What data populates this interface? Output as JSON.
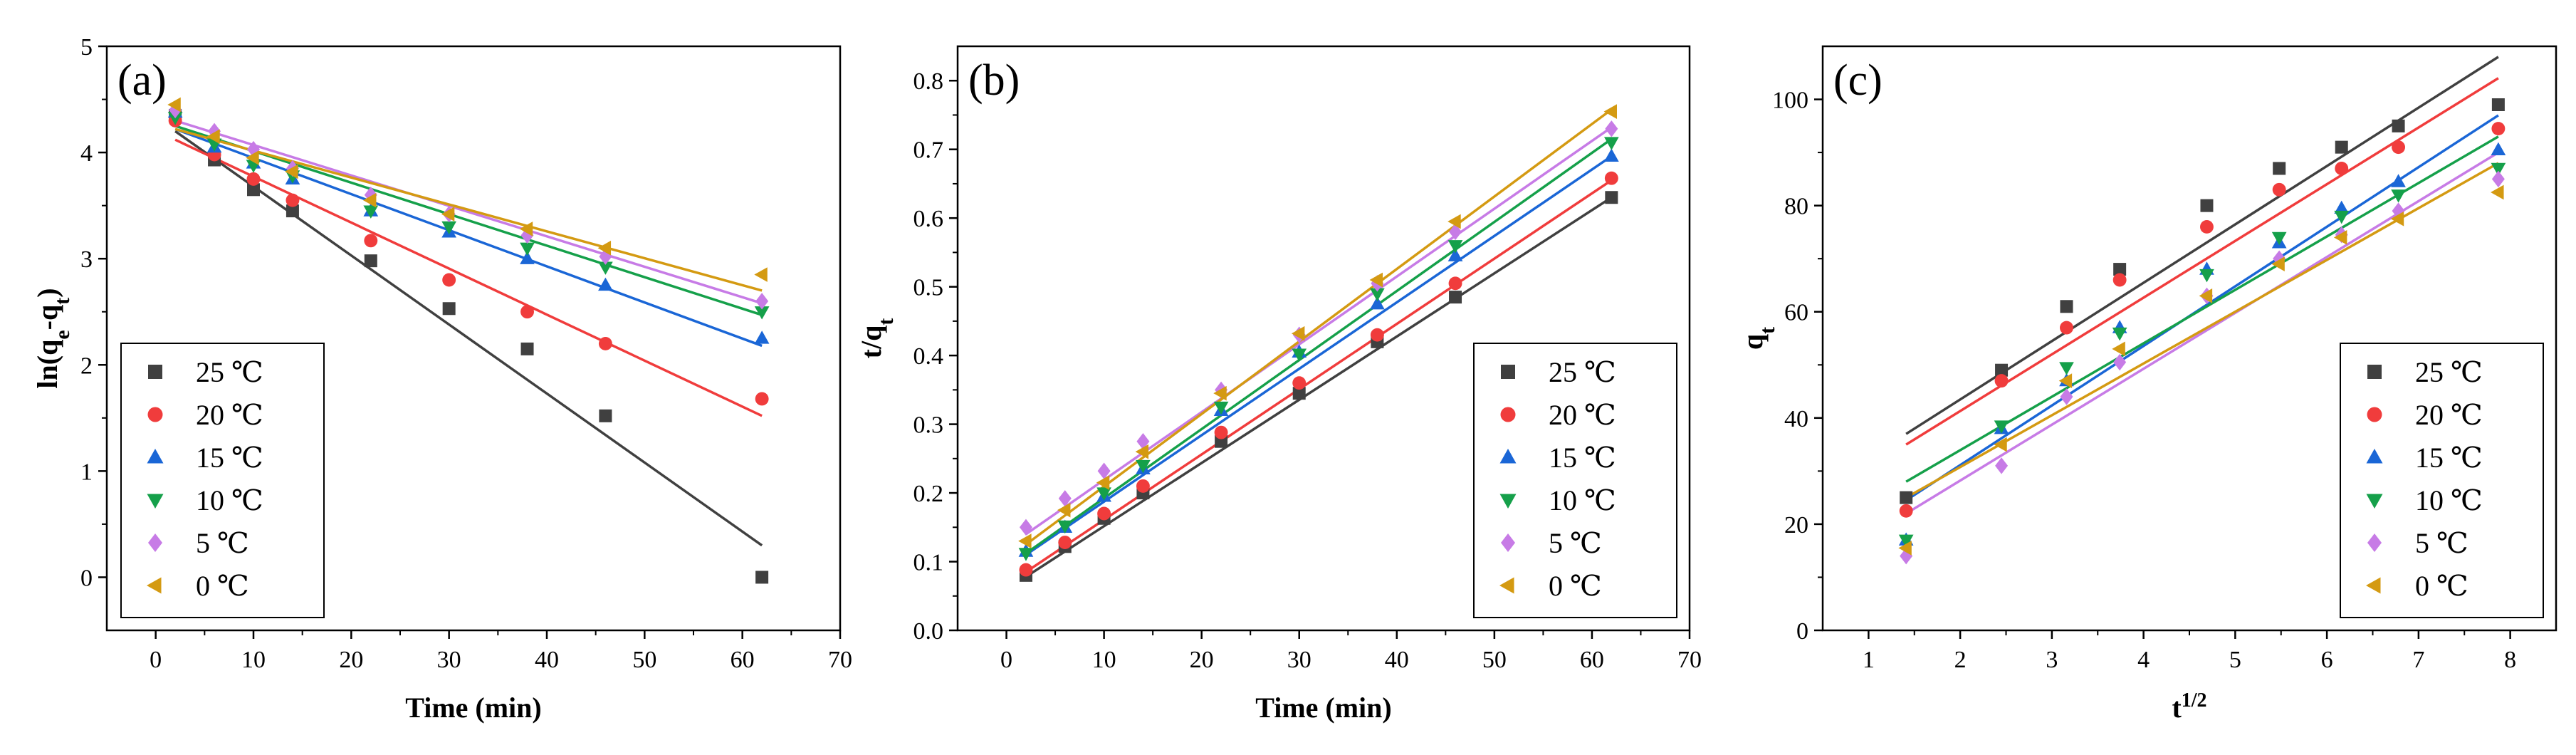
{
  "chart_data": [
    {
      "type": "scatter",
      "panel_label": "(a)",
      "xlabel": "Time (min)",
      "ylabel": "ln(qe-qt)",
      "xlim": [
        -5,
        70
      ],
      "ylim": [
        -0.5,
        5
      ],
      "xticks": [
        0,
        10,
        20,
        30,
        40,
        50,
        60,
        70
      ],
      "yticks": [
        0,
        1,
        2,
        3,
        4,
        5
      ],
      "grid": false,
      "legend_position": "bottom-left",
      "series": [
        {
          "name": "25 ℃",
          "marker": "square",
          "color": "#404040",
          "x": [
            2,
            6,
            10,
            14,
            22,
            30,
            38,
            46,
            62
          ],
          "y": [
            4.35,
            3.93,
            3.65,
            3.45,
            2.98,
            2.53,
            2.15,
            1.52,
            0.0
          ],
          "fit": {
            "x": [
              2,
              62
            ],
            "y": [
              4.2,
              0.3
            ]
          }
        },
        {
          "name": "20 ℃",
          "marker": "circle",
          "color": "#f03c3c",
          "x": [
            2,
            6,
            10,
            14,
            22,
            30,
            38,
            46,
            62
          ],
          "y": [
            4.3,
            3.98,
            3.75,
            3.55,
            3.17,
            2.8,
            2.5,
            2.2,
            1.68
          ],
          "fit": {
            "x": [
              2,
              62
            ],
            "y": [
              4.12,
              1.52
            ]
          }
        },
        {
          "name": "15 ℃",
          "marker": "triangle-up",
          "color": "#1a66d6",
          "x": [
            2,
            6,
            10,
            14,
            22,
            30,
            38,
            46,
            62
          ],
          "y": [
            4.38,
            4.05,
            3.9,
            3.75,
            3.45,
            3.25,
            3.0,
            2.75,
            2.25
          ],
          "fit": {
            "x": [
              2,
              62
            ],
            "y": [
              4.22,
              2.18
            ]
          }
        },
        {
          "name": "10 ℃",
          "marker": "triangle-down",
          "color": "#15a04a",
          "x": [
            2,
            6,
            10,
            14,
            22,
            30,
            38,
            46,
            62
          ],
          "y": [
            4.33,
            4.08,
            3.88,
            3.78,
            3.45,
            3.3,
            3.1,
            2.92,
            2.5
          ],
          "fit": {
            "x": [
              2,
              62
            ],
            "y": [
              4.25,
              2.47
            ]
          }
        },
        {
          "name": "5 ℃",
          "marker": "diamond",
          "color": "#c77be6",
          "x": [
            2,
            6,
            10,
            14,
            22,
            30,
            38,
            46,
            62
          ],
          "y": [
            4.4,
            4.2,
            4.03,
            3.85,
            3.6,
            3.42,
            3.22,
            3.02,
            2.6
          ],
          "fit": {
            "x": [
              2,
              62
            ],
            "y": [
              4.3,
              2.58
            ]
          }
        },
        {
          "name": "0 ℃",
          "marker": "triangle-left",
          "color": "#d49a12",
          "x": [
            2,
            6,
            10,
            14,
            22,
            30,
            38,
            46,
            62
          ],
          "y": [
            4.45,
            4.15,
            3.95,
            3.82,
            3.55,
            3.42,
            3.28,
            3.1,
            2.85
          ],
          "fit": {
            "x": [
              2,
              62
            ],
            "y": [
              4.22,
              2.7
            ]
          }
        }
      ]
    },
    {
      "type": "scatter",
      "panel_label": "(b)",
      "xlabel": "Time (min)",
      "ylabel": "t/qt",
      "xlim": [
        -5,
        70
      ],
      "ylim": [
        0,
        0.85
      ],
      "xticks": [
        0,
        10,
        20,
        30,
        40,
        50,
        60,
        70
      ],
      "yticks": [
        0.0,
        0.1,
        0.2,
        0.3,
        0.4,
        0.5,
        0.6,
        0.7,
        0.8
      ],
      "grid": false,
      "legend_position": "bottom-right",
      "series": [
        {
          "name": "25 ℃",
          "marker": "square",
          "color": "#404040",
          "x": [
            2,
            6,
            10,
            14,
            22,
            30,
            38,
            46,
            62
          ],
          "y": [
            0.08,
            0.122,
            0.163,
            0.2,
            0.275,
            0.345,
            0.42,
            0.485,
            0.63
          ],
          "fit": {
            "x": [
              2,
              62
            ],
            "y": [
              0.078,
              0.63
            ]
          }
        },
        {
          "name": "20 ℃",
          "marker": "circle",
          "color": "#f03c3c",
          "x": [
            2,
            6,
            10,
            14,
            22,
            30,
            38,
            46,
            62
          ],
          "y": [
            0.088,
            0.128,
            0.17,
            0.21,
            0.288,
            0.36,
            0.43,
            0.505,
            0.658
          ],
          "fit": {
            "x": [
              2,
              62
            ],
            "y": [
              0.085,
              0.655
            ]
          }
        },
        {
          "name": "15 ℃",
          "marker": "triangle-up",
          "color": "#1a66d6",
          "x": [
            2,
            6,
            10,
            14,
            22,
            30,
            38,
            46,
            62
          ],
          "y": [
            0.115,
            0.15,
            0.195,
            0.235,
            0.32,
            0.405,
            0.475,
            0.545,
            0.69
          ],
          "fit": {
            "x": [
              2,
              62
            ],
            "y": [
              0.11,
              0.69
            ]
          }
        },
        {
          "name": "10 ℃",
          "marker": "triangle-down",
          "color": "#15a04a",
          "x": [
            2,
            6,
            10,
            14,
            22,
            30,
            38,
            46,
            62
          ],
          "y": [
            0.112,
            0.152,
            0.2,
            0.24,
            0.325,
            0.402,
            0.49,
            0.56,
            0.71
          ],
          "fit": {
            "x": [
              2,
              62
            ],
            "y": [
              0.112,
              0.715
            ]
          }
        },
        {
          "name": "5 ℃",
          "marker": "diamond",
          "color": "#c77be6",
          "x": [
            2,
            6,
            10,
            14,
            22,
            30,
            38,
            46,
            62
          ],
          "y": [
            0.15,
            0.192,
            0.232,
            0.275,
            0.35,
            0.43,
            0.505,
            0.58,
            0.73
          ],
          "fit": {
            "x": [
              2,
              62
            ],
            "y": [
              0.14,
              0.732
            ]
          }
        },
        {
          "name": "0 ℃",
          "marker": "triangle-left",
          "color": "#d49a12",
          "x": [
            2,
            6,
            10,
            14,
            22,
            30,
            38,
            46,
            62
          ],
          "y": [
            0.13,
            0.175,
            0.215,
            0.26,
            0.345,
            0.432,
            0.51,
            0.595,
            0.755
          ],
          "fit": {
            "x": [
              2,
              62
            ],
            "y": [
              0.125,
              0.758
            ]
          }
        }
      ]
    },
    {
      "type": "scatter",
      "panel_label": "(c)",
      "xlabel": "t1/2",
      "ylabel": "qt",
      "xlim": [
        0.5,
        8.5
      ],
      "ylim": [
        0,
        110
      ],
      "xticks": [
        1,
        2,
        3,
        4,
        5,
        6,
        7,
        8
      ],
      "yticks": [
        0,
        20,
        40,
        60,
        80,
        100
      ],
      "grid": false,
      "legend_position": "bottom-right",
      "series": [
        {
          "name": "25 ℃",
          "marker": "square",
          "color": "#404040",
          "x": [
            1.41,
            2.45,
            3.16,
            3.74,
            4.69,
            5.48,
            6.16,
            6.78,
            7.87
          ],
          "y": [
            25,
            49,
            61,
            68,
            80,
            87,
            91,
            95,
            99
          ],
          "fit": {
            "x": [
              1.41,
              7.87
            ],
            "y": [
              37,
              108
            ]
          }
        },
        {
          "name": "20 ℃",
          "marker": "circle",
          "color": "#f03c3c",
          "x": [
            1.41,
            2.45,
            3.16,
            3.74,
            4.69,
            5.48,
            6.16,
            6.78,
            7.87
          ],
          "y": [
            22.5,
            47,
            57,
            66,
            76,
            83,
            87,
            91,
            94.5
          ],
          "fit": {
            "x": [
              1.41,
              7.87
            ],
            "y": [
              35,
              104
            ]
          }
        },
        {
          "name": "15 ℃",
          "marker": "triangle-up",
          "color": "#1a66d6",
          "x": [
            1.41,
            2.45,
            3.16,
            3.74,
            4.69,
            5.48,
            6.16,
            6.78,
            7.87
          ],
          "y": [
            17,
            38,
            47,
            57,
            68,
            73,
            79.5,
            84.5,
            90.5
          ],
          "fit": {
            "x": [
              1.41,
              7.87
            ],
            "y": [
              24.5,
              97
            ]
          }
        },
        {
          "name": "10 ℃",
          "marker": "triangle-down",
          "color": "#15a04a",
          "x": [
            1.41,
            2.45,
            3.16,
            3.74,
            4.69,
            5.48,
            6.16,
            6.78,
            7.87
          ],
          "y": [
            17,
            38.5,
            49.5,
            56,
            67,
            74,
            78,
            82,
            87
          ],
          "fit": {
            "x": [
              1.41,
              7.87
            ],
            "y": [
              28,
              93
            ]
          }
        },
        {
          "name": "5 ℃",
          "marker": "diamond",
          "color": "#c77be6",
          "x": [
            1.41,
            2.45,
            3.16,
            3.74,
            4.69,
            5.48,
            6.16,
            6.78,
            7.87
          ],
          "y": [
            14,
            31,
            44,
            50.5,
            63,
            70,
            74.5,
            79,
            85
          ],
          "fit": {
            "x": [
              1.41,
              7.87
            ],
            "y": [
              22,
              90
            ]
          }
        },
        {
          "name": "0 ℃",
          "marker": "triangle-left",
          "color": "#d49a12",
          "x": [
            1.41,
            2.45,
            3.16,
            3.74,
            4.69,
            5.48,
            6.16,
            6.78,
            7.87
          ],
          "y": [
            15.5,
            35,
            47,
            53,
            63,
            69,
            74,
            77.5,
            82.5
          ],
          "fit": {
            "x": [
              1.41,
              7.87
            ],
            "y": [
              25,
              88
            ]
          }
        }
      ]
    }
  ]
}
